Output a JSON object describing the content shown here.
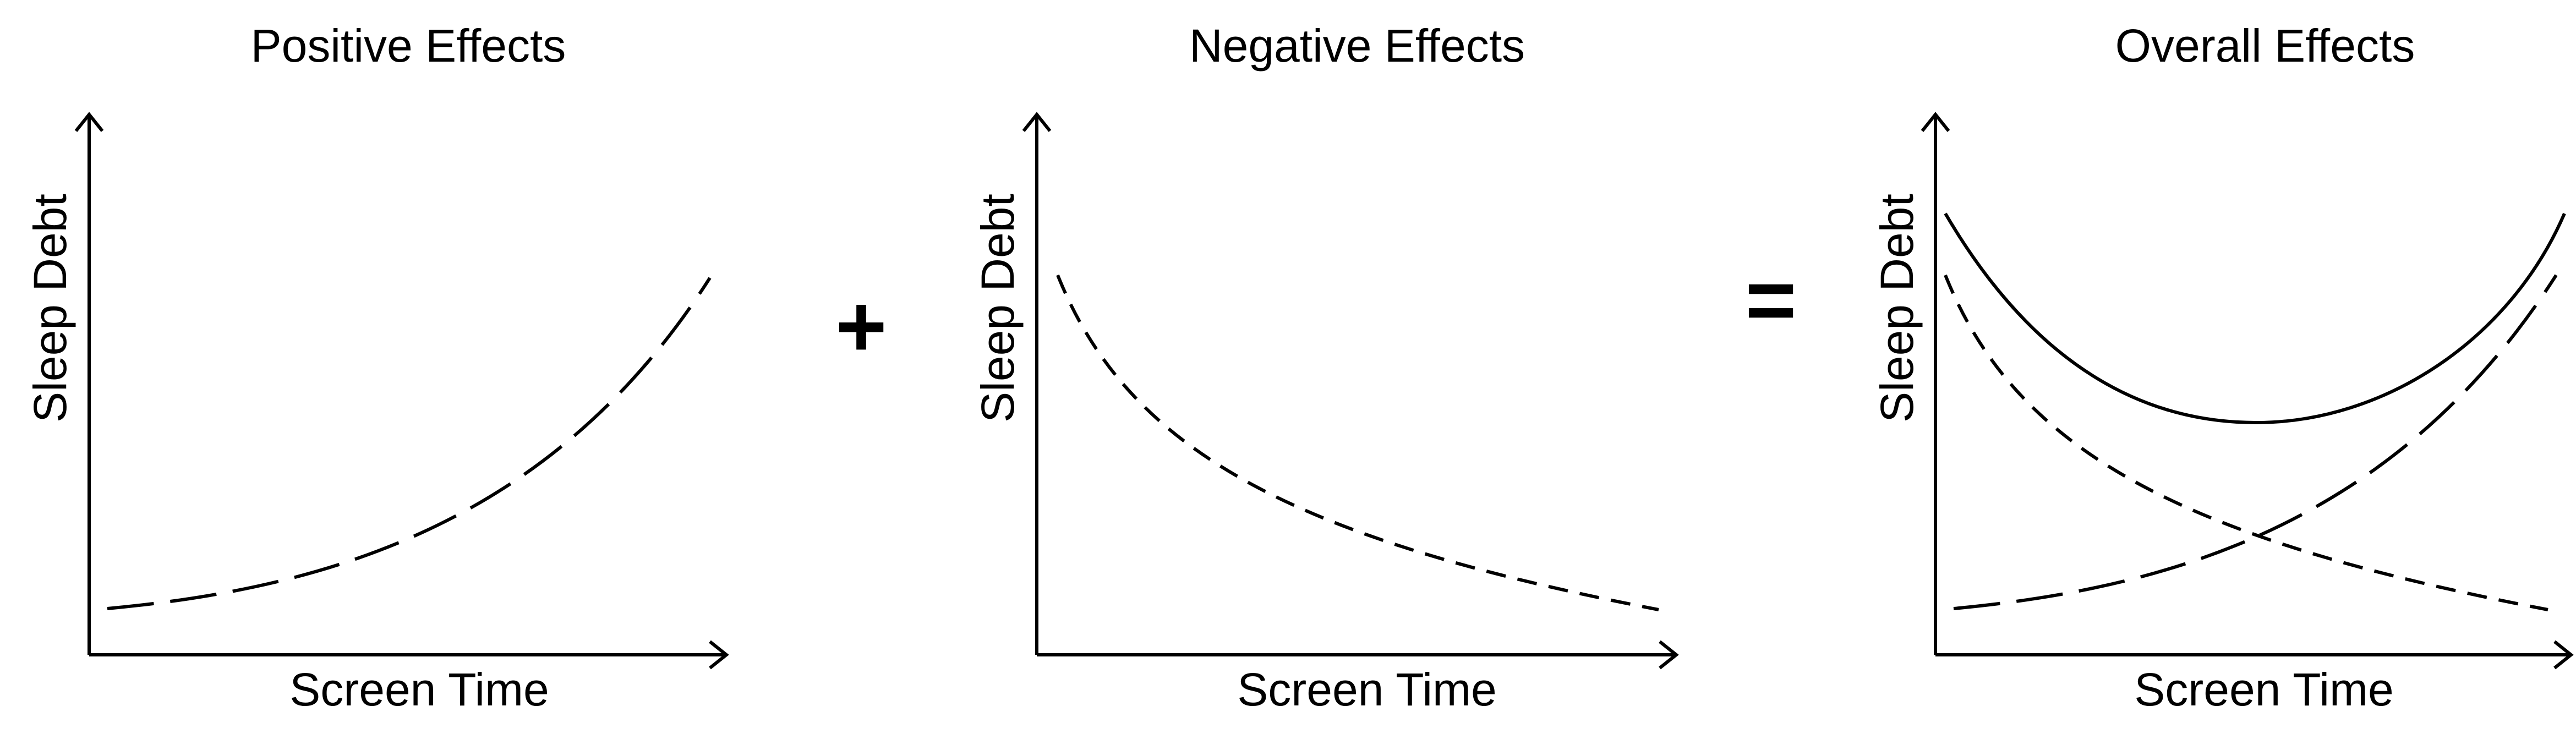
{
  "panels": [
    {
      "title": "Positive Effects",
      "ylabel": "Sleep Debt",
      "xlabel": "Screen Time"
    },
    {
      "title": "Negative Effects",
      "ylabel": "Sleep Debt",
      "xlabel": "Screen Time"
    },
    {
      "title": "Overall Effects",
      "ylabel": "Sleep Debt",
      "xlabel": "Screen Time"
    }
  ],
  "operators": {
    "plus": "+",
    "equals": "="
  },
  "colors": {
    "line": "#000000",
    "background": "#ffffff"
  }
}
